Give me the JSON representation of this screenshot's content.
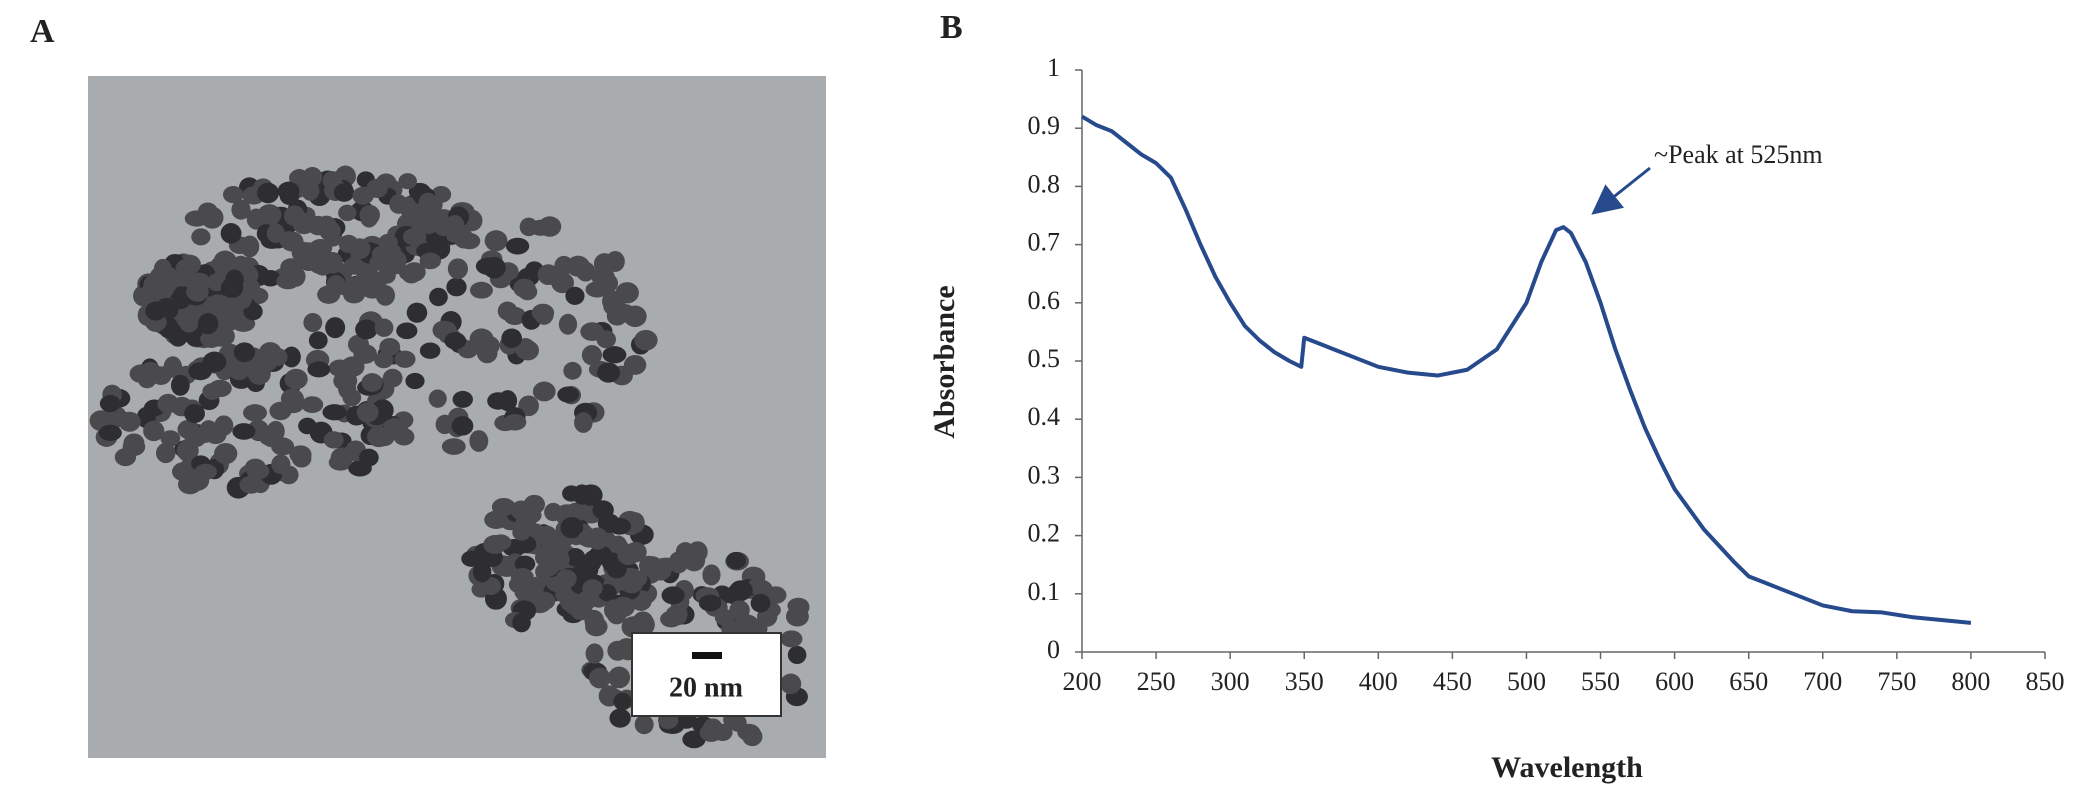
{
  "panel_labels": [
    "A",
    "B"
  ],
  "scale_bar": "20 nm",
  "chart_data": {
    "type": "line",
    "xlabel": "Wavelength",
    "ylabel": "Absorbance",
    "annotation": "~Peak at 525nm",
    "color": "#264a8c",
    "x": [
      200,
      210,
      220,
      230,
      240,
      250,
      260,
      270,
      280,
      290,
      300,
      310,
      320,
      330,
      340,
      348,
      350,
      360,
      370,
      380,
      400,
      420,
      440,
      460,
      480,
      500,
      510,
      520,
      525,
      530,
      540,
      550,
      560,
      570,
      580,
      590,
      600,
      620,
      640,
      650,
      660,
      680,
      700,
      720,
      740,
      760,
      780,
      800
    ],
    "values": [
      0.92,
      0.905,
      0.895,
      0.875,
      0.855,
      0.84,
      0.815,
      0.76,
      0.7,
      0.645,
      0.6,
      0.56,
      0.535,
      0.515,
      0.5,
      0.49,
      0.54,
      0.53,
      0.52,
      0.51,
      0.49,
      0.48,
      0.475,
      0.485,
      0.52,
      0.6,
      0.67,
      0.725,
      0.73,
      0.72,
      0.67,
      0.6,
      0.52,
      0.45,
      0.385,
      0.33,
      0.28,
      0.21,
      0.155,
      0.13,
      0.12,
      0.1,
      0.08,
      0.07,
      0.068,
      0.06,
      0.055,
      0.05
    ],
    "xlim": [
      200,
      850
    ],
    "xticks": [
      200,
      250,
      300,
      350,
      400,
      450,
      500,
      550,
      600,
      650,
      700,
      750,
      800,
      850
    ],
    "ylim": [
      0,
      1
    ],
    "yticks": [
      0,
      0.1,
      0.2,
      0.3,
      0.4,
      0.5,
      0.6,
      0.7,
      0.8,
      0.9,
      1
    ]
  }
}
